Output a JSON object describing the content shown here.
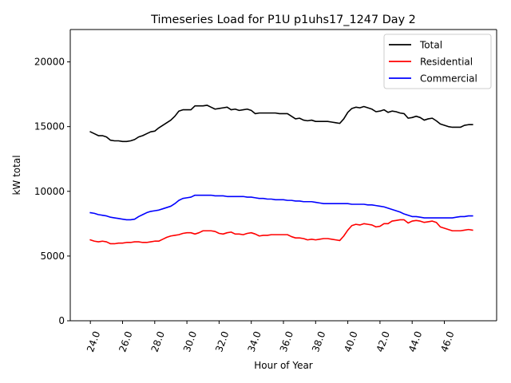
{
  "chart_data": {
    "type": "line",
    "title": "Timeseries Load for P1U p1uhs17_1247  Day 2",
    "xlabel": "Hour of Year",
    "ylabel": "kW total",
    "xlim": [
      22.75,
      49.25
    ],
    "ylim": [
      0,
      22500
    ],
    "xticks": [
      24,
      26,
      28,
      30,
      32,
      34,
      36,
      38,
      40,
      42,
      44,
      46
    ],
    "xtick_labels": [
      "24.0",
      "26.0",
      "28.0",
      "30.0",
      "32.0",
      "34.0",
      "36.0",
      "38.0",
      "40.0",
      "42.0",
      "44.0",
      "46.0"
    ],
    "yticks": [
      0,
      5000,
      10000,
      15000,
      20000
    ],
    "ytick_labels": [
      "0",
      "5000",
      "10000",
      "15000",
      "20000"
    ],
    "grid": false,
    "legend_position": "top-right",
    "x": [
      24.0,
      24.25,
      24.5,
      24.75,
      25.0,
      25.25,
      25.5,
      25.75,
      26.0,
      26.25,
      26.5,
      26.75,
      27.0,
      27.25,
      27.5,
      27.75,
      28.0,
      28.25,
      28.5,
      28.75,
      29.0,
      29.25,
      29.5,
      29.75,
      30.0,
      30.25,
      30.5,
      30.75,
      31.0,
      31.25,
      31.5,
      31.75,
      32.0,
      32.25,
      32.5,
      32.75,
      33.0,
      33.25,
      33.5,
      33.75,
      34.0,
      34.25,
      34.5,
      34.75,
      35.0,
      35.25,
      35.5,
      35.75,
      36.0,
      36.25,
      36.5,
      36.75,
      37.0,
      37.25,
      37.5,
      37.75,
      38.0,
      38.25,
      38.5,
      38.75,
      39.0,
      39.25,
      39.5,
      39.75,
      40.0,
      40.25,
      40.5,
      40.75,
      41.0,
      41.25,
      41.5,
      41.75,
      42.0,
      42.25,
      42.5,
      42.75,
      43.0,
      43.25,
      43.5,
      43.75,
      44.0,
      44.25,
      44.5,
      44.75,
      45.0,
      45.25,
      45.5,
      45.75,
      46.0,
      46.25,
      46.5,
      46.75,
      47.0,
      47.25,
      47.5,
      47.75
    ],
    "series": [
      {
        "name": "Total",
        "color": "#000000",
        "values": [
          14600,
          14450,
          14300,
          14300,
          14200,
          13950,
          13900,
          13900,
          13850,
          13850,
          13900,
          14000,
          14200,
          14300,
          14450,
          14600,
          14650,
          14900,
          15100,
          15300,
          15500,
          15800,
          16200,
          16300,
          16300,
          16300,
          16600,
          16600,
          16600,
          16650,
          16500,
          16350,
          16400,
          16450,
          16500,
          16300,
          16350,
          16250,
          16300,
          16350,
          16250,
          16000,
          16050,
          16050,
          16050,
          16050,
          16050,
          16000,
          16000,
          16000,
          15800,
          15600,
          15650,
          15500,
          15450,
          15500,
          15400,
          15400,
          15400,
          15400,
          15350,
          15300,
          15250,
          15600,
          16100,
          16400,
          16500,
          16450,
          16550,
          16450,
          16350,
          16150,
          16200,
          16300,
          16100,
          16200,
          16150,
          16050,
          16000,
          15650,
          15700,
          15800,
          15700,
          15500,
          15600,
          15650,
          15450,
          15200,
          15100,
          15000,
          14950,
          14950,
          14950,
          15100,
          15150,
          15150
        ]
      },
      {
        "name": "Residential",
        "color": "#ff0000",
        "values": [
          6250,
          6150,
          6100,
          6150,
          6100,
          5950,
          5950,
          6000,
          6000,
          6050,
          6050,
          6100,
          6100,
          6050,
          6050,
          6100,
          6150,
          6150,
          6300,
          6450,
          6550,
          6600,
          6650,
          6750,
          6800,
          6800,
          6700,
          6800,
          6950,
          6950,
          6950,
          6900,
          6750,
          6700,
          6800,
          6850,
          6700,
          6700,
          6650,
          6750,
          6800,
          6700,
          6550,
          6600,
          6600,
          6650,
          6650,
          6650,
          6650,
          6650,
          6500,
          6400,
          6400,
          6350,
          6250,
          6300,
          6250,
          6300,
          6350,
          6350,
          6300,
          6250,
          6200,
          6550,
          7000,
          7350,
          7450,
          7400,
          7500,
          7450,
          7400,
          7250,
          7300,
          7500,
          7500,
          7700,
          7750,
          7800,
          7800,
          7550,
          7700,
          7750,
          7700,
          7600,
          7650,
          7700,
          7600,
          7250,
          7150,
          7050,
          6950,
          6950,
          6950,
          7000,
          7050,
          7000
        ]
      },
      {
        "name": "Commercial",
        "color": "#0000ff",
        "values": [
          8350,
          8300,
          8200,
          8150,
          8100,
          8000,
          7950,
          7900,
          7850,
          7800,
          7800,
          7850,
          8050,
          8200,
          8350,
          8450,
          8500,
          8550,
          8650,
          8750,
          8850,
          9050,
          9300,
          9450,
          9500,
          9550,
          9700,
          9700,
          9700,
          9700,
          9700,
          9650,
          9650,
          9650,
          9600,
          9600,
          9600,
          9600,
          9600,
          9550,
          9550,
          9500,
          9450,
          9450,
          9400,
          9400,
          9350,
          9350,
          9350,
          9300,
          9300,
          9250,
          9250,
          9200,
          9200,
          9200,
          9150,
          9100,
          9050,
          9050,
          9050,
          9050,
          9050,
          9050,
          9050,
          9000,
          9000,
          9000,
          9000,
          8950,
          8950,
          8900,
          8850,
          8800,
          8700,
          8600,
          8500,
          8400,
          8250,
          8150,
          8050,
          8050,
          8000,
          7950,
          7950,
          7950,
          7950,
          7950,
          7950,
          7950,
          7950,
          8000,
          8050,
          8050,
          8100,
          8100
        ]
      }
    ]
  }
}
